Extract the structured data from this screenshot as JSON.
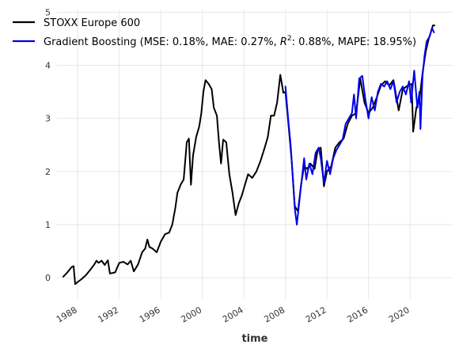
{
  "chart_data": {
    "type": "line",
    "title": "",
    "xlabel": "time",
    "ylabel": "",
    "x_domain": [
      1986.0,
      2024.1
    ],
    "ylim": [
      -0.4,
      5.05
    ],
    "x_ticks": [
      {
        "label": "1988",
        "value": 1988
      },
      {
        "label": "1992",
        "value": 1992
      },
      {
        "label": "1996",
        "value": 1996
      },
      {
        "label": "2000",
        "value": 2000
      },
      {
        "label": "2004",
        "value": 2004
      },
      {
        "label": "2008",
        "value": 2008
      },
      {
        "label": "2012",
        "value": 2012
      },
      {
        "label": "2016",
        "value": 2016
      },
      {
        "label": "2020",
        "value": 2020
      }
    ],
    "y_ticks": [
      {
        "label": "0",
        "value": 0
      },
      {
        "label": "1",
        "value": 1
      },
      {
        "label": "2",
        "value": 2
      },
      {
        "label": "3",
        "value": 3
      },
      {
        "label": "4",
        "value": 4
      },
      {
        "label": "5",
        "value": 5
      }
    ],
    "grid": true,
    "legend_position": "top-left",
    "series": [
      {
        "name": "STOXX Europe 600",
        "color": "#000000",
        "points": [
          [
            1986.6,
            0.02
          ],
          [
            1987.0,
            0.1
          ],
          [
            1987.4,
            0.2
          ],
          [
            1987.6,
            0.22
          ],
          [
            1987.75,
            -0.12
          ],
          [
            1988.0,
            -0.08
          ],
          [
            1988.4,
            -0.02
          ],
          [
            1988.8,
            0.05
          ],
          [
            1989.2,
            0.15
          ],
          [
            1989.6,
            0.25
          ],
          [
            1989.8,
            0.32
          ],
          [
            1990.0,
            0.28
          ],
          [
            1990.3,
            0.32
          ],
          [
            1990.6,
            0.24
          ],
          [
            1990.9,
            0.33
          ],
          [
            1991.1,
            0.08
          ],
          [
            1991.6,
            0.1
          ],
          [
            1992.0,
            0.28
          ],
          [
            1992.4,
            0.3
          ],
          [
            1992.8,
            0.25
          ],
          [
            1993.1,
            0.32
          ],
          [
            1993.4,
            0.12
          ],
          [
            1993.8,
            0.25
          ],
          [
            1994.2,
            0.48
          ],
          [
            1994.5,
            0.55
          ],
          [
            1994.7,
            0.72
          ],
          [
            1994.9,
            0.58
          ],
          [
            1995.2,
            0.55
          ],
          [
            1995.6,
            0.48
          ],
          [
            1996.0,
            0.68
          ],
          [
            1996.4,
            0.82
          ],
          [
            1996.8,
            0.85
          ],
          [
            1997.1,
            1.0
          ],
          [
            1997.4,
            1.32
          ],
          [
            1997.6,
            1.6
          ],
          [
            1997.9,
            1.75
          ],
          [
            1998.2,
            1.85
          ],
          [
            1998.5,
            2.55
          ],
          [
            1998.7,
            2.62
          ],
          [
            1998.9,
            1.75
          ],
          [
            1999.1,
            2.3
          ],
          [
            1999.4,
            2.65
          ],
          [
            1999.7,
            2.85
          ],
          [
            1999.9,
            3.1
          ],
          [
            2000.1,
            3.5
          ],
          [
            2000.3,
            3.72
          ],
          [
            2000.6,
            3.65
          ],
          [
            2000.9,
            3.55
          ],
          [
            2001.1,
            3.2
          ],
          [
            2001.4,
            3.05
          ],
          [
            2001.6,
            2.55
          ],
          [
            2001.8,
            2.15
          ],
          [
            2002.0,
            2.6
          ],
          [
            2002.3,
            2.55
          ],
          [
            2002.6,
            1.95
          ],
          [
            2002.9,
            1.6
          ],
          [
            2003.2,
            1.18
          ],
          [
            2003.5,
            1.4
          ],
          [
            2003.8,
            1.55
          ],
          [
            2004.1,
            1.75
          ],
          [
            2004.4,
            1.95
          ],
          [
            2004.8,
            1.88
          ],
          [
            2005.2,
            2.0
          ],
          [
            2005.6,
            2.2
          ],
          [
            2006.0,
            2.45
          ],
          [
            2006.3,
            2.65
          ],
          [
            2006.6,
            3.05
          ],
          [
            2006.9,
            3.05
          ],
          [
            2007.2,
            3.3
          ],
          [
            2007.5,
            3.82
          ],
          [
            2007.8,
            3.48
          ],
          [
            2008.0,
            3.5
          ],
          [
            2008.3,
            2.85
          ],
          [
            2008.6,
            2.2
          ],
          [
            2008.9,
            1.35
          ],
          [
            2009.2,
            1.25
          ],
          [
            2009.5,
            1.75
          ],
          [
            2009.8,
            2.1
          ],
          [
            2010.1,
            2.05
          ],
          [
            2010.4,
            2.15
          ],
          [
            2010.8,
            2.05
          ],
          [
            2011.1,
            2.4
          ],
          [
            2011.4,
            2.45
          ],
          [
            2011.7,
            1.72
          ],
          [
            2012.0,
            2.0
          ],
          [
            2012.4,
            2.1
          ],
          [
            2012.8,
            2.45
          ],
          [
            2013.2,
            2.55
          ],
          [
            2013.6,
            2.62
          ],
          [
            2014.0,
            2.9
          ],
          [
            2014.4,
            3.05
          ],
          [
            2014.8,
            3.1
          ],
          [
            2015.2,
            3.75
          ],
          [
            2015.6,
            3.3
          ],
          [
            2016.0,
            3.1
          ],
          [
            2016.4,
            3.2
          ],
          [
            2016.8,
            3.4
          ],
          [
            2017.2,
            3.62
          ],
          [
            2017.6,
            3.7
          ],
          [
            2018.0,
            3.62
          ],
          [
            2018.4,
            3.72
          ],
          [
            2018.9,
            3.15
          ],
          [
            2019.3,
            3.55
          ],
          [
            2019.8,
            3.62
          ],
          [
            2020.15,
            3.65
          ],
          [
            2020.3,
            2.75
          ],
          [
            2020.6,
            3.2
          ],
          [
            2020.9,
            3.35
          ],
          [
            2021.2,
            3.85
          ],
          [
            2021.5,
            4.25
          ],
          [
            2021.8,
            4.5
          ],
          [
            2022.0,
            4.62
          ],
          [
            2022.2,
            4.75
          ],
          [
            2022.35,
            4.75
          ]
        ]
      },
      {
        "name": "Gradient Boosting (MSE: 0.18%, MAE: 0.27%, $R^2$: 0.88%, MAPE: 18.95%)",
        "color": "#0000ee",
        "points": [
          [
            2008.0,
            3.6
          ],
          [
            2008.3,
            2.9
          ],
          [
            2008.5,
            2.5
          ],
          [
            2008.7,
            1.9
          ],
          [
            2008.9,
            1.3
          ],
          [
            2009.1,
            1.0
          ],
          [
            2009.4,
            1.55
          ],
          [
            2009.6,
            1.9
          ],
          [
            2009.8,
            2.25
          ],
          [
            2010.0,
            1.85
          ],
          [
            2010.3,
            2.15
          ],
          [
            2010.6,
            1.95
          ],
          [
            2010.9,
            2.35
          ],
          [
            2011.2,
            2.45
          ],
          [
            2011.4,
            2.25
          ],
          [
            2011.7,
            1.78
          ],
          [
            2012.0,
            2.2
          ],
          [
            2012.3,
            1.95
          ],
          [
            2012.6,
            2.25
          ],
          [
            2012.9,
            2.4
          ],
          [
            2013.2,
            2.5
          ],
          [
            2013.5,
            2.6
          ],
          [
            2013.8,
            2.9
          ],
          [
            2014.1,
            3.0
          ],
          [
            2014.4,
            3.1
          ],
          [
            2014.6,
            3.45
          ],
          [
            2014.8,
            3.0
          ],
          [
            2015.1,
            3.75
          ],
          [
            2015.4,
            3.8
          ],
          [
            2015.7,
            3.35
          ],
          [
            2016.0,
            3.0
          ],
          [
            2016.3,
            3.4
          ],
          [
            2016.6,
            3.15
          ],
          [
            2016.9,
            3.5
          ],
          [
            2017.2,
            3.65
          ],
          [
            2017.5,
            3.6
          ],
          [
            2017.8,
            3.7
          ],
          [
            2018.1,
            3.55
          ],
          [
            2018.4,
            3.7
          ],
          [
            2018.7,
            3.3
          ],
          [
            2019.0,
            3.5
          ],
          [
            2019.3,
            3.6
          ],
          [
            2019.6,
            3.45
          ],
          [
            2019.9,
            3.7
          ],
          [
            2020.1,
            3.3
          ],
          [
            2020.4,
            3.9
          ],
          [
            2020.7,
            3.2
          ],
          [
            2020.9,
            3.5
          ],
          [
            2021.0,
            2.8
          ],
          [
            2021.2,
            3.8
          ],
          [
            2021.4,
            4.2
          ],
          [
            2021.6,
            4.45
          ],
          [
            2021.9,
            4.55
          ],
          [
            2022.1,
            4.7
          ],
          [
            2022.3,
            4.62
          ]
        ]
      }
    ]
  }
}
